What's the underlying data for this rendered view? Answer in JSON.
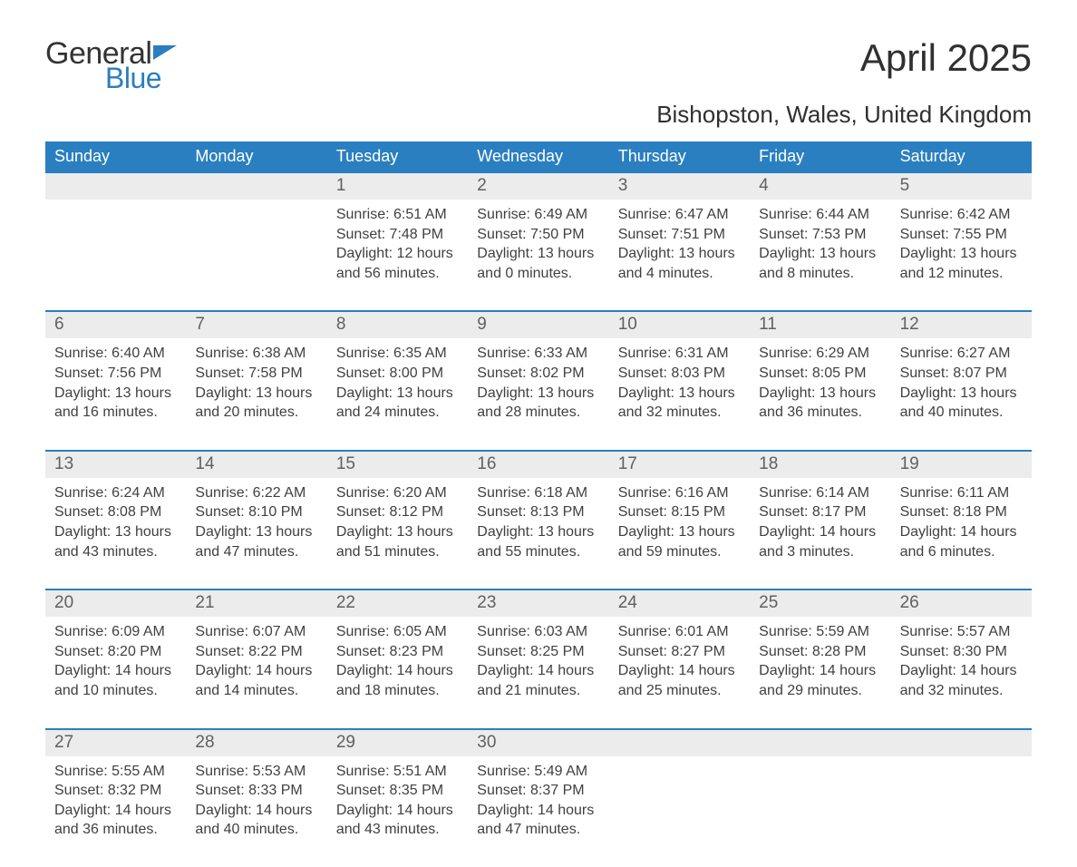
{
  "logo": {
    "word1": "General",
    "word2": "Blue",
    "icon_color": "#2a7fc0"
  },
  "title": "April 2025",
  "location": "Bishopston, Wales, United Kingdom",
  "colors": {
    "header_bg": "#2a7fc0",
    "header_text": "#ffffff",
    "daynum_bg": "#ececec",
    "body_text": "#404040",
    "accent_line": "#2a7fc0",
    "page_bg": "#ffffff"
  },
  "fonts": {
    "family": "Arial",
    "title_size_pt": 32,
    "location_size_pt": 20,
    "weekday_size_pt": 14,
    "body_size_pt": 12
  },
  "weekdays": [
    "Sunday",
    "Monday",
    "Tuesday",
    "Wednesday",
    "Thursday",
    "Friday",
    "Saturday"
  ],
  "weeks": [
    {
      "days": [
        null,
        null,
        {
          "num": "1",
          "sunrise": "Sunrise: 6:51 AM",
          "sunset": "Sunset: 7:48 PM",
          "daylight1": "Daylight: 12 hours",
          "daylight2": "and 56 minutes."
        },
        {
          "num": "2",
          "sunrise": "Sunrise: 6:49 AM",
          "sunset": "Sunset: 7:50 PM",
          "daylight1": "Daylight: 13 hours",
          "daylight2": "and 0 minutes."
        },
        {
          "num": "3",
          "sunrise": "Sunrise: 6:47 AM",
          "sunset": "Sunset: 7:51 PM",
          "daylight1": "Daylight: 13 hours",
          "daylight2": "and 4 minutes."
        },
        {
          "num": "4",
          "sunrise": "Sunrise: 6:44 AM",
          "sunset": "Sunset: 7:53 PM",
          "daylight1": "Daylight: 13 hours",
          "daylight2": "and 8 minutes."
        },
        {
          "num": "5",
          "sunrise": "Sunrise: 6:42 AM",
          "sunset": "Sunset: 7:55 PM",
          "daylight1": "Daylight: 13 hours",
          "daylight2": "and 12 minutes."
        }
      ]
    },
    {
      "days": [
        {
          "num": "6",
          "sunrise": "Sunrise: 6:40 AM",
          "sunset": "Sunset: 7:56 PM",
          "daylight1": "Daylight: 13 hours",
          "daylight2": "and 16 minutes."
        },
        {
          "num": "7",
          "sunrise": "Sunrise: 6:38 AM",
          "sunset": "Sunset: 7:58 PM",
          "daylight1": "Daylight: 13 hours",
          "daylight2": "and 20 minutes."
        },
        {
          "num": "8",
          "sunrise": "Sunrise: 6:35 AM",
          "sunset": "Sunset: 8:00 PM",
          "daylight1": "Daylight: 13 hours",
          "daylight2": "and 24 minutes."
        },
        {
          "num": "9",
          "sunrise": "Sunrise: 6:33 AM",
          "sunset": "Sunset: 8:02 PM",
          "daylight1": "Daylight: 13 hours",
          "daylight2": "and 28 minutes."
        },
        {
          "num": "10",
          "sunrise": "Sunrise: 6:31 AM",
          "sunset": "Sunset: 8:03 PM",
          "daylight1": "Daylight: 13 hours",
          "daylight2": "and 32 minutes."
        },
        {
          "num": "11",
          "sunrise": "Sunrise: 6:29 AM",
          "sunset": "Sunset: 8:05 PM",
          "daylight1": "Daylight: 13 hours",
          "daylight2": "and 36 minutes."
        },
        {
          "num": "12",
          "sunrise": "Sunrise: 6:27 AM",
          "sunset": "Sunset: 8:07 PM",
          "daylight1": "Daylight: 13 hours",
          "daylight2": "and 40 minutes."
        }
      ]
    },
    {
      "days": [
        {
          "num": "13",
          "sunrise": "Sunrise: 6:24 AM",
          "sunset": "Sunset: 8:08 PM",
          "daylight1": "Daylight: 13 hours",
          "daylight2": "and 43 minutes."
        },
        {
          "num": "14",
          "sunrise": "Sunrise: 6:22 AM",
          "sunset": "Sunset: 8:10 PM",
          "daylight1": "Daylight: 13 hours",
          "daylight2": "and 47 minutes."
        },
        {
          "num": "15",
          "sunrise": "Sunrise: 6:20 AM",
          "sunset": "Sunset: 8:12 PM",
          "daylight1": "Daylight: 13 hours",
          "daylight2": "and 51 minutes."
        },
        {
          "num": "16",
          "sunrise": "Sunrise: 6:18 AM",
          "sunset": "Sunset: 8:13 PM",
          "daylight1": "Daylight: 13 hours",
          "daylight2": "and 55 minutes."
        },
        {
          "num": "17",
          "sunrise": "Sunrise: 6:16 AM",
          "sunset": "Sunset: 8:15 PM",
          "daylight1": "Daylight: 13 hours",
          "daylight2": "and 59 minutes."
        },
        {
          "num": "18",
          "sunrise": "Sunrise: 6:14 AM",
          "sunset": "Sunset: 8:17 PM",
          "daylight1": "Daylight: 14 hours",
          "daylight2": "and 3 minutes."
        },
        {
          "num": "19",
          "sunrise": "Sunrise: 6:11 AM",
          "sunset": "Sunset: 8:18 PM",
          "daylight1": "Daylight: 14 hours",
          "daylight2": "and 6 minutes."
        }
      ]
    },
    {
      "days": [
        {
          "num": "20",
          "sunrise": "Sunrise: 6:09 AM",
          "sunset": "Sunset: 8:20 PM",
          "daylight1": "Daylight: 14 hours",
          "daylight2": "and 10 minutes."
        },
        {
          "num": "21",
          "sunrise": "Sunrise: 6:07 AM",
          "sunset": "Sunset: 8:22 PM",
          "daylight1": "Daylight: 14 hours",
          "daylight2": "and 14 minutes."
        },
        {
          "num": "22",
          "sunrise": "Sunrise: 6:05 AM",
          "sunset": "Sunset: 8:23 PM",
          "daylight1": "Daylight: 14 hours",
          "daylight2": "and 18 minutes."
        },
        {
          "num": "23",
          "sunrise": "Sunrise: 6:03 AM",
          "sunset": "Sunset: 8:25 PM",
          "daylight1": "Daylight: 14 hours",
          "daylight2": "and 21 minutes."
        },
        {
          "num": "24",
          "sunrise": "Sunrise: 6:01 AM",
          "sunset": "Sunset: 8:27 PM",
          "daylight1": "Daylight: 14 hours",
          "daylight2": "and 25 minutes."
        },
        {
          "num": "25",
          "sunrise": "Sunrise: 5:59 AM",
          "sunset": "Sunset: 8:28 PM",
          "daylight1": "Daylight: 14 hours",
          "daylight2": "and 29 minutes."
        },
        {
          "num": "26",
          "sunrise": "Sunrise: 5:57 AM",
          "sunset": "Sunset: 8:30 PM",
          "daylight1": "Daylight: 14 hours",
          "daylight2": "and 32 minutes."
        }
      ]
    },
    {
      "days": [
        {
          "num": "27",
          "sunrise": "Sunrise: 5:55 AM",
          "sunset": "Sunset: 8:32 PM",
          "daylight1": "Daylight: 14 hours",
          "daylight2": "and 36 minutes."
        },
        {
          "num": "28",
          "sunrise": "Sunrise: 5:53 AM",
          "sunset": "Sunset: 8:33 PM",
          "daylight1": "Daylight: 14 hours",
          "daylight2": "and 40 minutes."
        },
        {
          "num": "29",
          "sunrise": "Sunrise: 5:51 AM",
          "sunset": "Sunset: 8:35 PM",
          "daylight1": "Daylight: 14 hours",
          "daylight2": "and 43 minutes."
        },
        {
          "num": "30",
          "sunrise": "Sunrise: 5:49 AM",
          "sunset": "Sunset: 8:37 PM",
          "daylight1": "Daylight: 14 hours",
          "daylight2": "and 47 minutes."
        },
        null,
        null,
        null
      ]
    }
  ]
}
